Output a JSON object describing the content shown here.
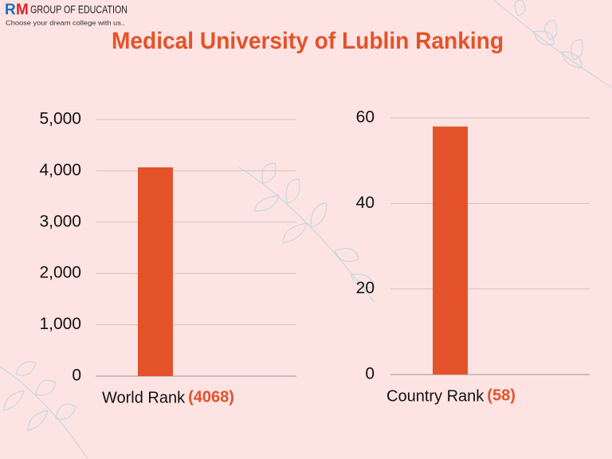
{
  "brand": {
    "r": "R",
    "m": "M",
    "name": "GROUP OF EDUCATION",
    "tagline": "Choose your dream college with us.."
  },
  "title": "Medical University of Lublin Ranking",
  "chart_data": [
    {
      "type": "bar",
      "categories": [
        "World Rank"
      ],
      "values": [
        4068
      ],
      "value_labels": [
        "(4068)"
      ],
      "color": "#e4522a",
      "ylim": [
        0,
        5000
      ],
      "yticks": [
        0,
        {
          "value": 1000,
          "label": "1,000"
        },
        {
          "value": 2000,
          "label": "2,000"
        },
        {
          "value": 3000,
          "label": "3,000"
        },
        {
          "value": 4000,
          "label": "4,000"
        },
        {
          "value": 5000,
          "label": "5,000"
        }
      ],
      "grid": true
    },
    {
      "type": "bar",
      "categories": [
        "Country Rank"
      ],
      "values": [
        58
      ],
      "value_labels": [
        "(58)"
      ],
      "color": "#e4522a",
      "ylim": [
        0,
        60
      ],
      "yticks": [
        0,
        20,
        40,
        60
      ],
      "grid": true
    }
  ]
}
